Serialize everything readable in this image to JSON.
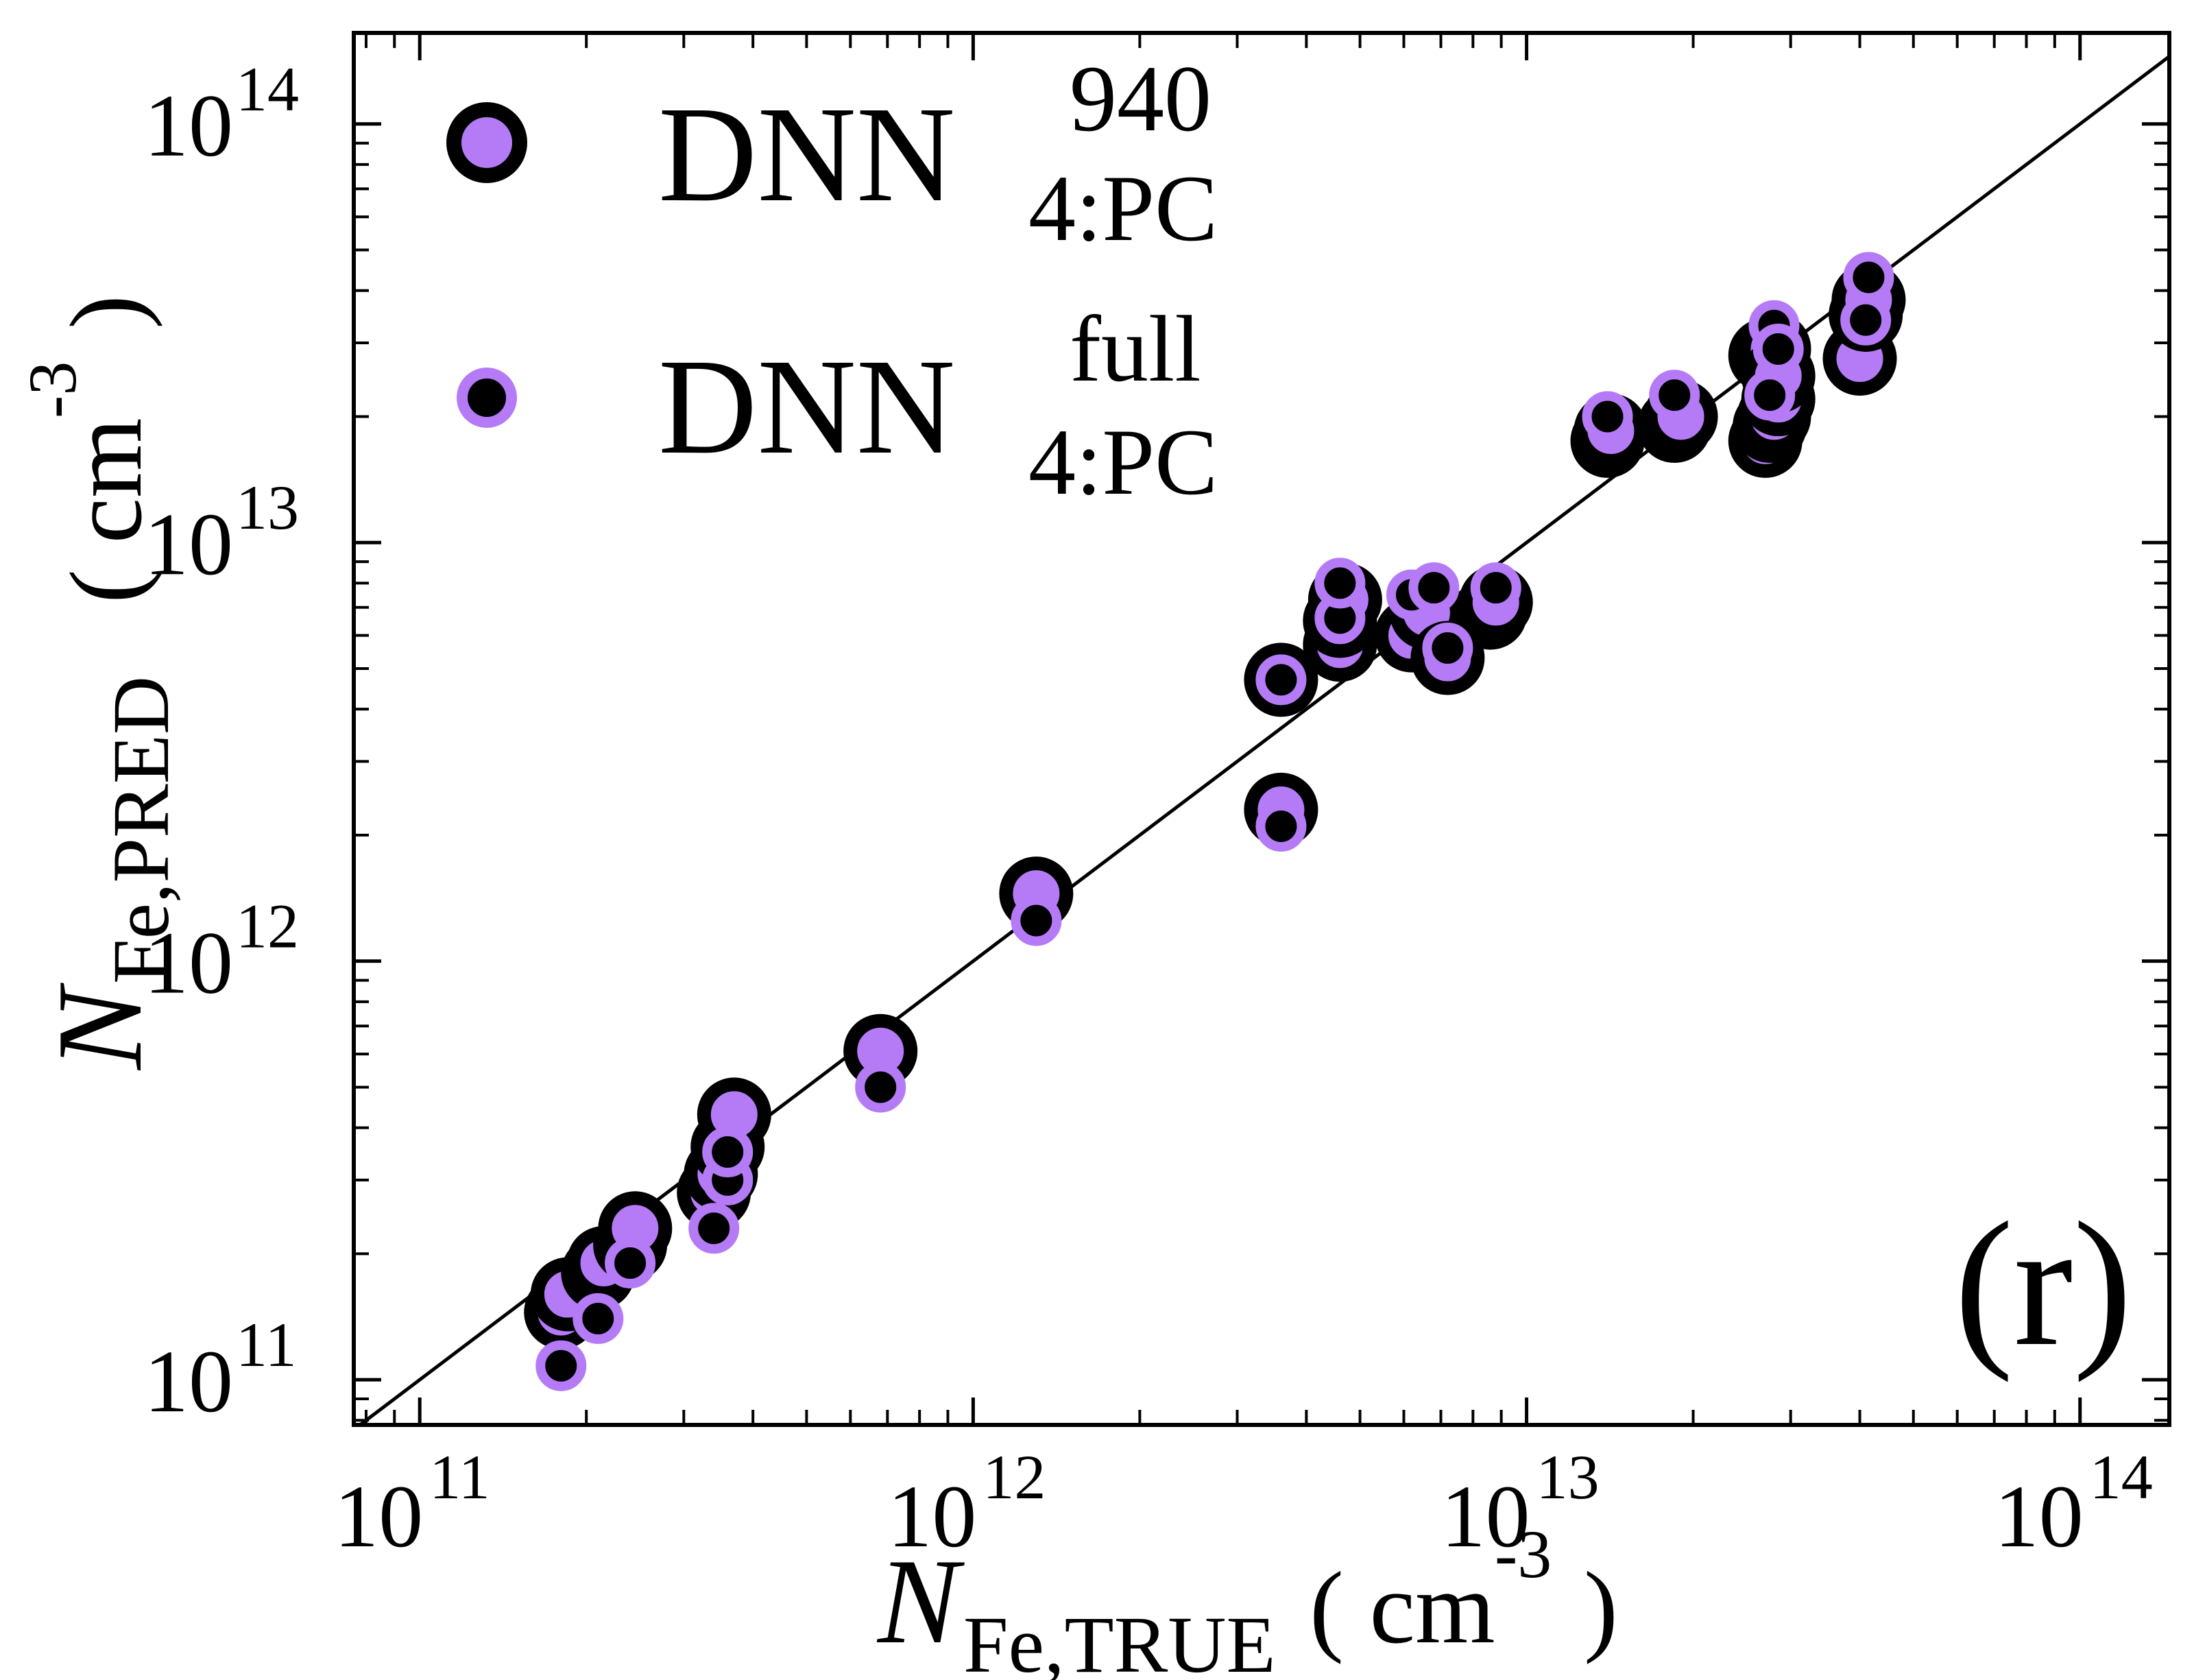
{
  "chart_data": {
    "type": "scatter",
    "panel_label": "(r)",
    "xlabel": {
      "main": "N",
      "sub": "Fe,TRUE",
      "unit_open": "( cm",
      "unit_exp": "-3",
      "unit_close": ")"
    },
    "ylabel": {
      "main": "N",
      "sub": "Fe,PRED",
      "unit_open": "( cm",
      "unit_exp": "-3",
      "unit_close": ")"
    },
    "xscale": "log",
    "yscale": "log",
    "xlim": [
      76000000000.0,
      145000000000000.0
    ],
    "ylim": [
      78000000000.0,
      165000000000000.0
    ],
    "xticks": [
      {
        "value": 100000000000.0,
        "base": "10",
        "exp": "11"
      },
      {
        "value": 1000000000000.0,
        "base": "10",
        "exp": "12"
      },
      {
        "value": 10000000000000.0,
        "base": "10",
        "exp": "13"
      },
      {
        "value": 100000000000000.0,
        "base": "10",
        "exp": "14"
      }
    ],
    "yticks": [
      {
        "value": 100000000000.0,
        "base": "10",
        "exp": "11"
      },
      {
        "value": 1000000000000.0,
        "base": "10",
        "exp": "12"
      },
      {
        "value": 10000000000000.0,
        "base": "10",
        "exp": "13"
      },
      {
        "value": 100000000000000.0,
        "base": "10",
        "exp": "14"
      }
    ],
    "reference_line": "y = x",
    "legend": {
      "position": "top-left",
      "entries": [
        {
          "text": "DNN",
          "sup": "940",
          "sub": "4:PC",
          "marker": "large"
        },
        {
          "text": "DNN",
          "sup": "full",
          "sub": "4:PC",
          "marker": "small"
        }
      ]
    },
    "colors": {
      "marker_fill": "#b57bf7",
      "marker_edge": "#000000",
      "axes": "#000000"
    },
    "series": [
      {
        "name": "DNN 940 4:PC",
        "marker": "large",
        "points": [
          [
            180000000000.0,
            145000000000.0
          ],
          [
            185000000000.0,
            160000000000.0
          ],
          [
            210000000000.0,
            180000000000.0
          ],
          [
            215000000000.0,
            190000000000.0
          ],
          [
            240000000000.0,
            210000000000.0
          ],
          [
            245000000000.0,
            230000000000.0
          ],
          [
            340000000000.0,
            280000000000.0
          ],
          [
            350000000000.0,
            310000000000.0
          ],
          [
            360000000000.0,
            360000000000.0
          ],
          [
            370000000000.0,
            430000000000.0
          ],
          [
            680000000000.0,
            610000000000.0
          ],
          [
            1300000000000.0,
            1450000000000.0
          ],
          [
            3600000000000.0,
            4700000000000.0
          ],
          [
            3600000000000.0,
            2300000000000.0
          ],
          [
            4600000000000.0,
            5700000000000.0
          ],
          [
            4600000000000.0,
            6500000000000.0
          ],
          [
            4700000000000.0,
            7300000000000.0
          ],
          [
            6200000000000.0,
            6000000000000.0
          ],
          [
            6600000000000.0,
            6800000000000.0
          ],
          [
            7200000000000.0,
            5300000000000.0
          ],
          [
            8600000000000.0,
            6800000000000.0
          ],
          [
            8800000000000.0,
            7200000000000.0
          ],
          [
            14000000000000.0,
            17500000000000.0
          ],
          [
            14200000000000.0,
            18500000000000.0
          ],
          [
            18500000000000.0,
            19000000000000.0
          ],
          [
            19000000000000.0,
            20000000000000.0
          ],
          [
            27000000000000.0,
            17500000000000.0
          ],
          [
            27500000000000.0,
            19000000000000.0
          ],
          [
            28000000000000.0,
            20000000000000.0
          ],
          [
            27000000000000.0,
            28000000000000.0
          ],
          [
            28000000000000.0,
            29000000000000.0
          ],
          [
            28500000000000.0,
            22000000000000.0
          ],
          [
            28500000000000.0,
            25000000000000.0
          ],
          [
            40000000000000.0,
            27500000000000.0
          ],
          [
            41000000000000.0,
            35000000000000.0
          ],
          [
            41500000000000.0,
            38000000000000.0
          ]
        ]
      },
      {
        "name": "DNN full 4:PC",
        "marker": "small",
        "points": [
          [
            180000000000.0,
            108000000000.0
          ],
          [
            210000000000.0,
            140000000000.0
          ],
          [
            240000000000.0,
            190000000000.0
          ],
          [
            340000000000.0,
            230000000000.0
          ],
          [
            360000000000.0,
            300000000000.0
          ],
          [
            360000000000.0,
            350000000000.0
          ],
          [
            680000000000.0,
            500000000000.0
          ],
          [
            1300000000000.0,
            1250000000000.0
          ],
          [
            3600000000000.0,
            2100000000000.0
          ],
          [
            3600000000000.0,
            4700000000000.0
          ],
          [
            4600000000000.0,
            6600000000000.0
          ],
          [
            4600000000000.0,
            8000000000000.0
          ],
          [
            6200000000000.0,
            7500000000000.0
          ],
          [
            6800000000000.0,
            7800000000000.0
          ],
          [
            7200000000000.0,
            5600000000000.0
          ],
          [
            8800000000000.0,
            7800000000000.0
          ],
          [
            14000000000000.0,
            20000000000000.0
          ],
          [
            18500000000000.0,
            22500000000000.0
          ],
          [
            27500000000000.0,
            22500000000000.0
          ],
          [
            28000000000000.0,
            33000000000000.0
          ],
          [
            28500000000000.0,
            29000000000000.0
          ],
          [
            41000000000000.0,
            34000000000000.0
          ],
          [
            41500000000000.0,
            43000000000000.0
          ]
        ]
      }
    ]
  }
}
